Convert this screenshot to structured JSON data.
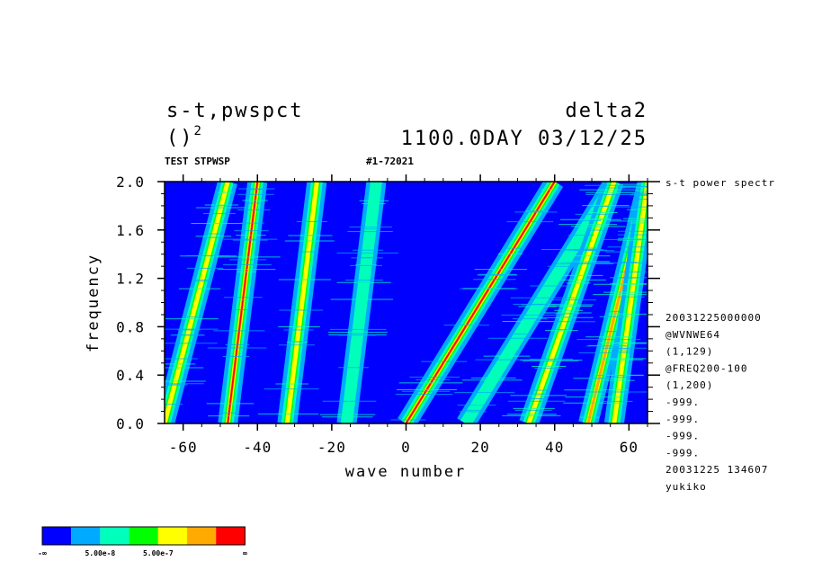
{
  "header": {
    "left_title": "s-t,pwspct",
    "right_title": "delta2",
    "units_base": "()",
    "units_power": "2",
    "time_label": "1100.0DAY 03/12/25",
    "subtitle_left": "TEST STPWSP",
    "subtitle_mid": "#1-72021"
  },
  "side_info": {
    "title": "s-t power spectr",
    "lines": [
      "20031225000000",
      "@WVNWE64",
      "(1,129)",
      "@FREQ200-100",
      "(1,200)",
      "-999.",
      "-999.",
      "-999.",
      "-999.",
      "20031225 134607",
      "yukiko"
    ]
  },
  "colorbar": {
    "colors": [
      "#0000ff",
      "#00aaff",
      "#00ffbb",
      "#00ff00",
      "#ffff00",
      "#ffaa00",
      "#ff0000"
    ],
    "labels": [
      "-∞",
      "5.00e-8",
      "5.00e-7",
      "∞"
    ]
  },
  "chart_data": {
    "type": "heatmap",
    "title": "s-t,pwspct",
    "xlabel": "wave number",
    "ylabel": "frequency",
    "xlim": [
      -65,
      65
    ],
    "ylim": [
      0.0,
      2.0
    ],
    "x_ticks": [
      "-60",
      "-40",
      "-20",
      "0",
      "20",
      "40",
      "60"
    ],
    "y_ticks": [
      "0.0",
      "0.4",
      "0.8",
      "1.2",
      "1.6",
      "2.0"
    ],
    "background_color": "#0000ff",
    "ridges": [
      {
        "x_at_f0": -65,
        "x_at_f2": -48,
        "peak": 4
      },
      {
        "x_at_f0": -48,
        "x_at_f2": -40,
        "peak": 6
      },
      {
        "x_at_f0": -32,
        "x_at_f2": -24,
        "peak": 4
      },
      {
        "x_at_f0": -16,
        "x_at_f2": -8,
        "peak": 2
      },
      {
        "x_at_f0": 0,
        "x_at_f2": 40,
        "peak": 6
      },
      {
        "x_at_f0": 16,
        "x_at_f2": 56,
        "peak": 2
      },
      {
        "x_at_f0": 33,
        "x_at_f2": 56,
        "peak": 4
      },
      {
        "x_at_f0": 49,
        "x_at_f2": 65,
        "peak": 5
      },
      {
        "x_at_f0": 56,
        "x_at_f2": 65,
        "peak": 4
      }
    ]
  }
}
